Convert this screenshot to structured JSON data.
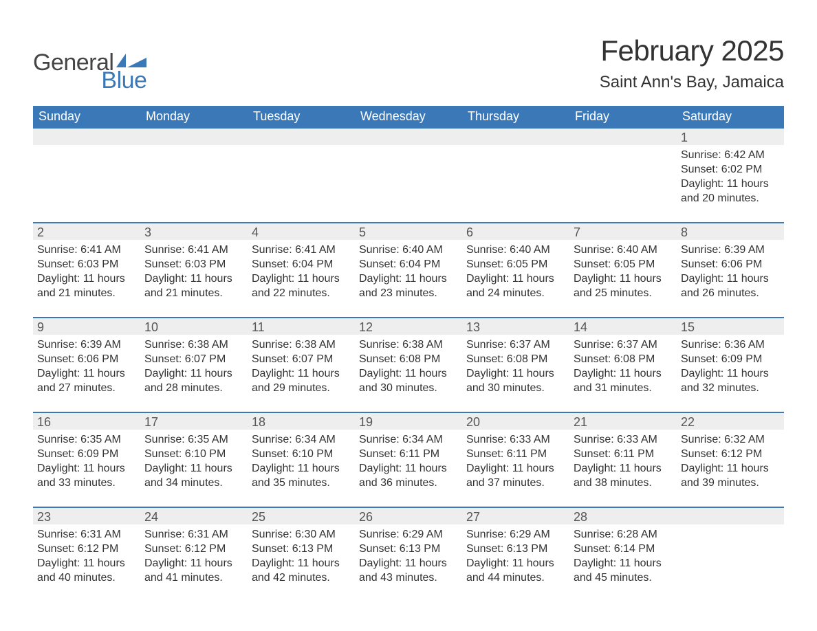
{
  "logo": {
    "text_general": "General",
    "text_blue": "Blue",
    "flag_color": "#3b78b8"
  },
  "title": "February 2025",
  "location": "Saint Ann's Bay, Jamaica",
  "colors": {
    "header_bg": "#3b78b8",
    "header_text": "#ffffff",
    "daynum_bg": "#eeeeee",
    "row_border": "#3b78b8",
    "text": "#333333",
    "page_bg": "#ffffff"
  },
  "day_headers": [
    "Sunday",
    "Monday",
    "Tuesday",
    "Wednesday",
    "Thursday",
    "Friday",
    "Saturday"
  ],
  "weeks": [
    [
      null,
      null,
      null,
      null,
      null,
      null,
      {
        "n": "1",
        "sunrise": "6:42 AM",
        "sunset": "6:02 PM",
        "dl_h": "11",
        "dl_m": "20"
      }
    ],
    [
      {
        "n": "2",
        "sunrise": "6:41 AM",
        "sunset": "6:03 PM",
        "dl_h": "11",
        "dl_m": "21"
      },
      {
        "n": "3",
        "sunrise": "6:41 AM",
        "sunset": "6:03 PM",
        "dl_h": "11",
        "dl_m": "21"
      },
      {
        "n": "4",
        "sunrise": "6:41 AM",
        "sunset": "6:04 PM",
        "dl_h": "11",
        "dl_m": "22"
      },
      {
        "n": "5",
        "sunrise": "6:40 AM",
        "sunset": "6:04 PM",
        "dl_h": "11",
        "dl_m": "23"
      },
      {
        "n": "6",
        "sunrise": "6:40 AM",
        "sunset": "6:05 PM",
        "dl_h": "11",
        "dl_m": "24"
      },
      {
        "n": "7",
        "sunrise": "6:40 AM",
        "sunset": "6:05 PM",
        "dl_h": "11",
        "dl_m": "25"
      },
      {
        "n": "8",
        "sunrise": "6:39 AM",
        "sunset": "6:06 PM",
        "dl_h": "11",
        "dl_m": "26"
      }
    ],
    [
      {
        "n": "9",
        "sunrise": "6:39 AM",
        "sunset": "6:06 PM",
        "dl_h": "11",
        "dl_m": "27"
      },
      {
        "n": "10",
        "sunrise": "6:38 AM",
        "sunset": "6:07 PM",
        "dl_h": "11",
        "dl_m": "28"
      },
      {
        "n": "11",
        "sunrise": "6:38 AM",
        "sunset": "6:07 PM",
        "dl_h": "11",
        "dl_m": "29"
      },
      {
        "n": "12",
        "sunrise": "6:38 AM",
        "sunset": "6:08 PM",
        "dl_h": "11",
        "dl_m": "30"
      },
      {
        "n": "13",
        "sunrise": "6:37 AM",
        "sunset": "6:08 PM",
        "dl_h": "11",
        "dl_m": "30"
      },
      {
        "n": "14",
        "sunrise": "6:37 AM",
        "sunset": "6:08 PM",
        "dl_h": "11",
        "dl_m": "31"
      },
      {
        "n": "15",
        "sunrise": "6:36 AM",
        "sunset": "6:09 PM",
        "dl_h": "11",
        "dl_m": "32"
      }
    ],
    [
      {
        "n": "16",
        "sunrise": "6:35 AM",
        "sunset": "6:09 PM",
        "dl_h": "11",
        "dl_m": "33"
      },
      {
        "n": "17",
        "sunrise": "6:35 AM",
        "sunset": "6:10 PM",
        "dl_h": "11",
        "dl_m": "34"
      },
      {
        "n": "18",
        "sunrise": "6:34 AM",
        "sunset": "6:10 PM",
        "dl_h": "11",
        "dl_m": "35"
      },
      {
        "n": "19",
        "sunrise": "6:34 AM",
        "sunset": "6:11 PM",
        "dl_h": "11",
        "dl_m": "36"
      },
      {
        "n": "20",
        "sunrise": "6:33 AM",
        "sunset": "6:11 PM",
        "dl_h": "11",
        "dl_m": "37"
      },
      {
        "n": "21",
        "sunrise": "6:33 AM",
        "sunset": "6:11 PM",
        "dl_h": "11",
        "dl_m": "38"
      },
      {
        "n": "22",
        "sunrise": "6:32 AM",
        "sunset": "6:12 PM",
        "dl_h": "11",
        "dl_m": "39"
      }
    ],
    [
      {
        "n": "23",
        "sunrise": "6:31 AM",
        "sunset": "6:12 PM",
        "dl_h": "11",
        "dl_m": "40"
      },
      {
        "n": "24",
        "sunrise": "6:31 AM",
        "sunset": "6:12 PM",
        "dl_h": "11",
        "dl_m": "41"
      },
      {
        "n": "25",
        "sunrise": "6:30 AM",
        "sunset": "6:13 PM",
        "dl_h": "11",
        "dl_m": "42"
      },
      {
        "n": "26",
        "sunrise": "6:29 AM",
        "sunset": "6:13 PM",
        "dl_h": "11",
        "dl_m": "43"
      },
      {
        "n": "27",
        "sunrise": "6:29 AM",
        "sunset": "6:13 PM",
        "dl_h": "11",
        "dl_m": "44"
      },
      {
        "n": "28",
        "sunrise": "6:28 AM",
        "sunset": "6:14 PM",
        "dl_h": "11",
        "dl_m": "45"
      },
      null
    ]
  ],
  "labels": {
    "sunrise_prefix": "Sunrise: ",
    "sunset_prefix": "Sunset: ",
    "daylight_prefix": "Daylight: ",
    "hours_word": " hours",
    "and_word": "and ",
    "minutes_suffix": " minutes."
  }
}
